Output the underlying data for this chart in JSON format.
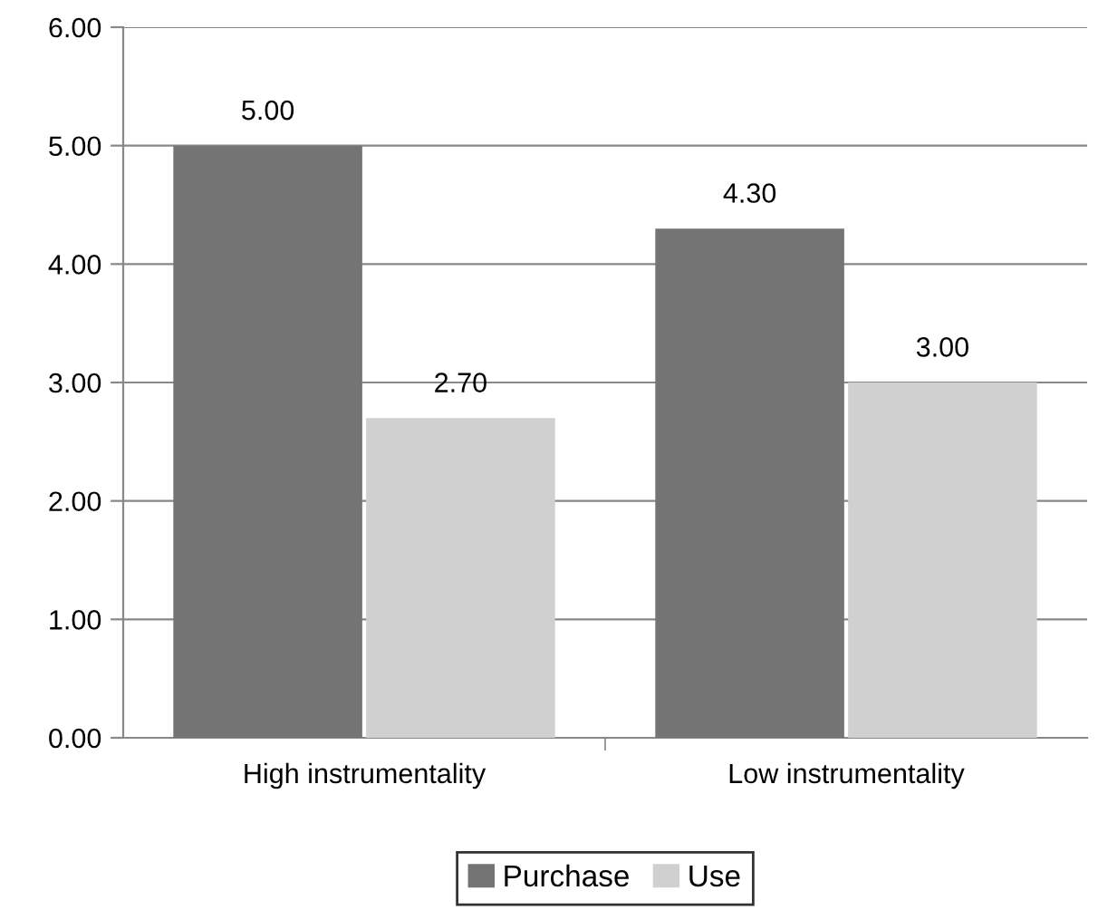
{
  "chart_data": {
    "type": "bar",
    "categories": [
      "High instrumentality",
      "Low instrumentality"
    ],
    "series": [
      {
        "name": "Purchase",
        "color": "#747474",
        "values": [
          5.0,
          4.3
        ],
        "value_labels": [
          "5.00",
          "4.30"
        ]
      },
      {
        "name": "Use",
        "color": "#d0d0d0",
        "values": [
          2.7,
          3.0
        ],
        "value_labels": [
          "2.70",
          "3.00"
        ]
      }
    ],
    "ylim": [
      0,
      6
    ],
    "yticks": [
      {
        "value": 0,
        "label": "0.00"
      },
      {
        "value": 1,
        "label": "1.00"
      },
      {
        "value": 2,
        "label": "2.00"
      },
      {
        "value": 3,
        "label": "3.00"
      },
      {
        "value": 4,
        "label": "4.00"
      },
      {
        "value": 5,
        "label": "5.00"
      },
      {
        "value": 6,
        "label": "6.00"
      }
    ],
    "grid": "y",
    "legend": "bottom"
  }
}
